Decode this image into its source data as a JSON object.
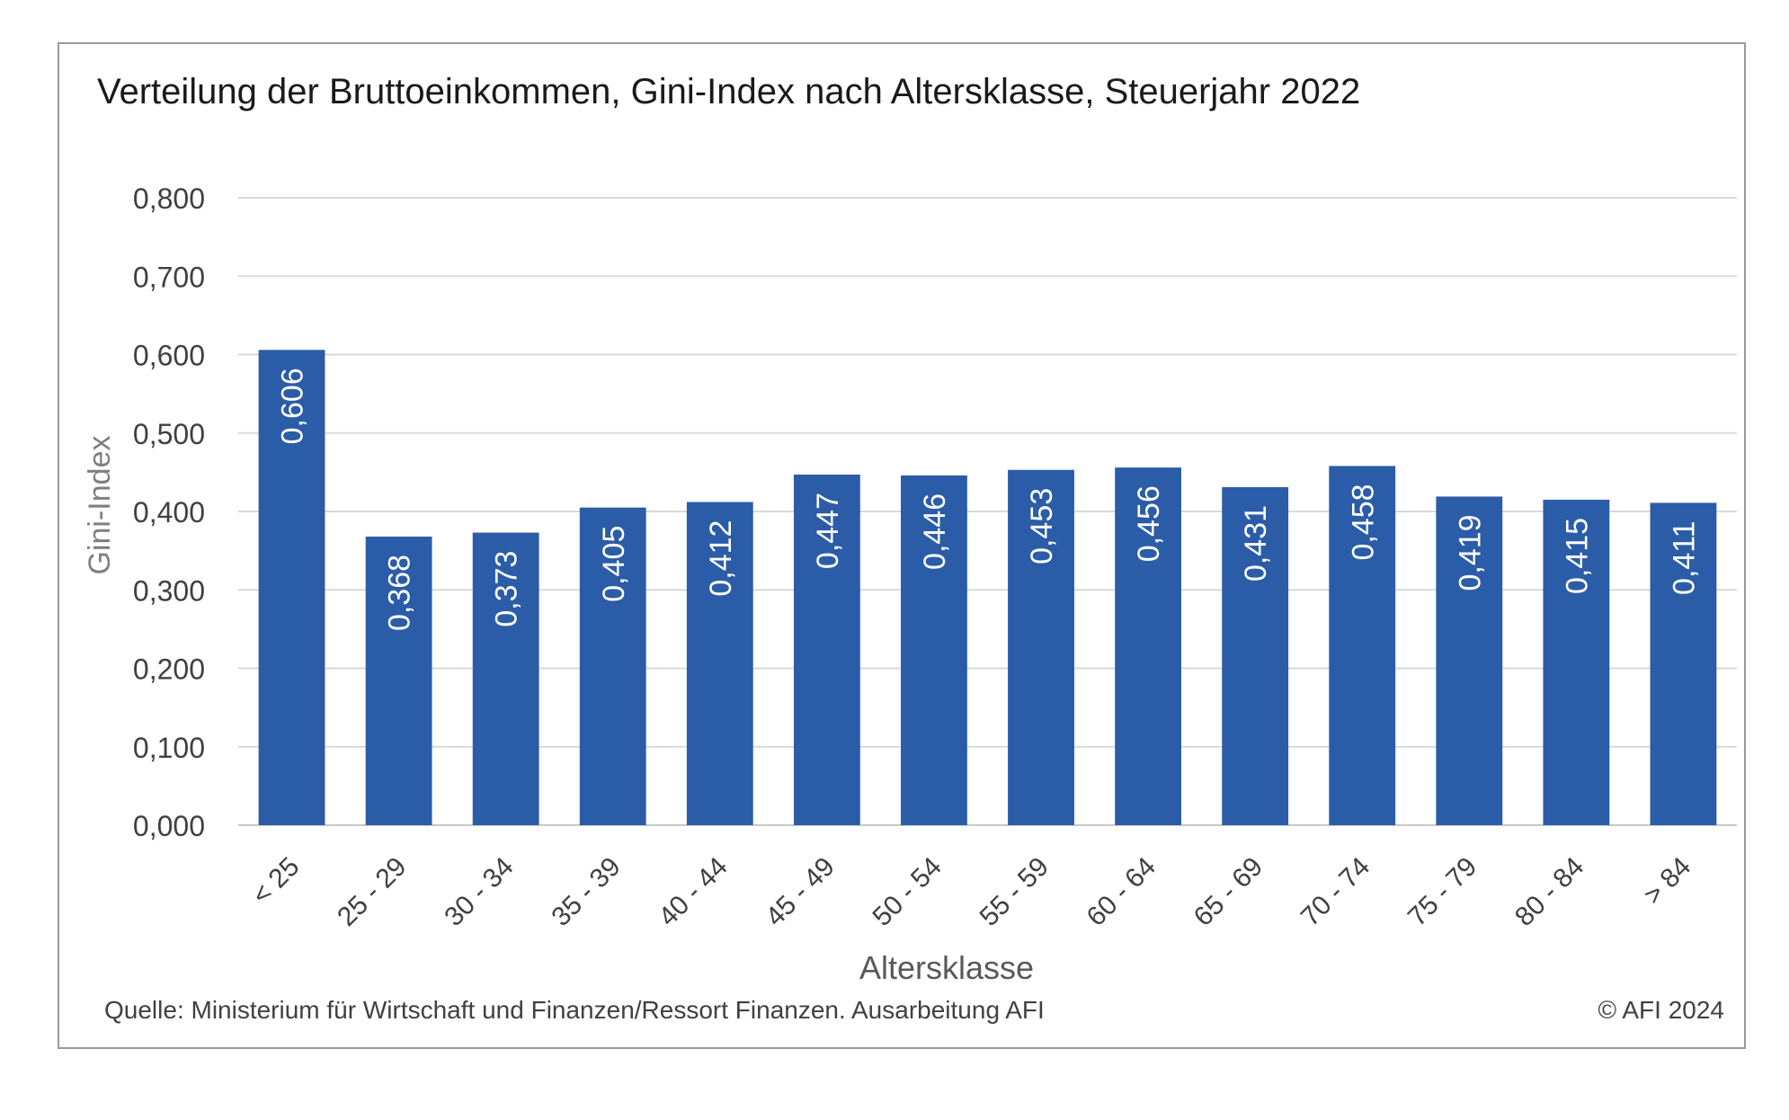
{
  "chart_data": {
    "type": "bar",
    "title": "Verteilung der Bruttoeinkommen, Gini-Index nach Altersklasse, Steuerjahr 2022",
    "xlabel": "Altersklasse",
    "ylabel": "Gini-Index",
    "ylim": [
      0,
      0.8
    ],
    "yticks": [
      "0,000",
      "0,100",
      "0,200",
      "0,300",
      "0,400",
      "0,500",
      "0,600",
      "0,700",
      "0,800"
    ],
    "categories": [
      "< 25",
      "25 - 29",
      "30 - 34",
      "35 - 39",
      "40 - 44",
      "45 - 49",
      "50 - 54",
      "55 - 59",
      "60 - 64",
      "65 - 69",
      "70 - 74",
      "75 - 79",
      "80 - 84",
      "> 84"
    ],
    "values": [
      0.606,
      0.368,
      0.373,
      0.405,
      0.412,
      0.447,
      0.446,
      0.453,
      0.456,
      0.431,
      0.458,
      0.419,
      0.415,
      0.411
    ],
    "value_labels": [
      "0,606",
      "0,368",
      "0,373",
      "0,405",
      "0,412",
      "0,447",
      "0,446",
      "0,453",
      "0,456",
      "0,431",
      "0,458",
      "0,419",
      "0,415",
      "0,411"
    ],
    "grid": true,
    "legend": "none",
    "bar_color": "#2b5ca8",
    "grid_color": "#d9d9d9"
  },
  "footer": {
    "source": "Quelle: Ministerium für Wirtschaft und Finanzen/Ressort Finanzen. Ausarbeitung AFI",
    "copyright": "© AFI 2024"
  }
}
